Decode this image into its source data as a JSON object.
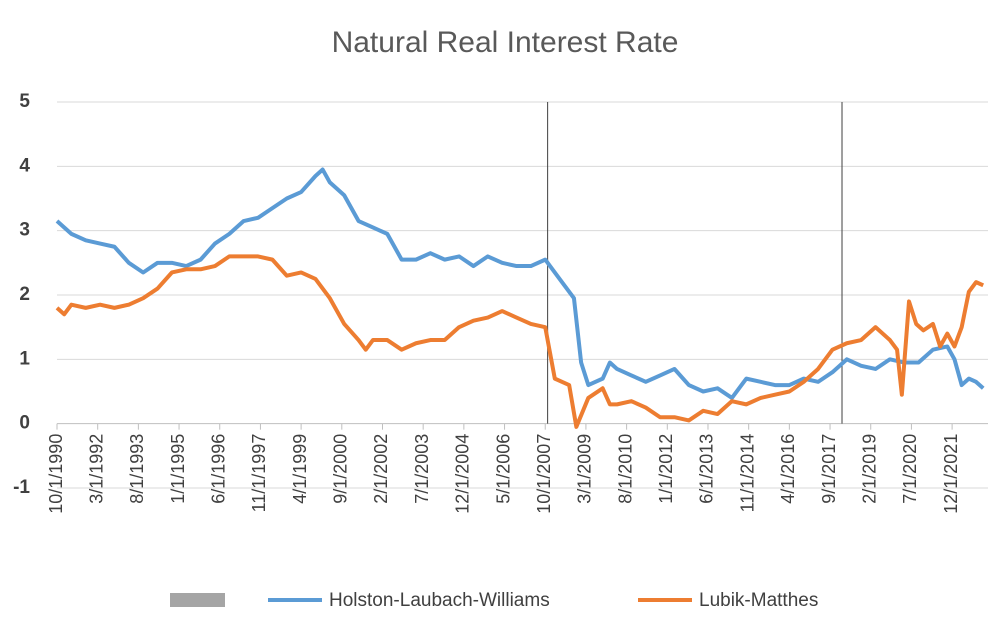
{
  "chart_data": {
    "type": "line",
    "title": "Natural Real Interest Rate",
    "xlim": [
      "1990-10",
      "2023-03"
    ],
    "xticks": [
      {
        "value": "1990-10",
        "label": "10/1/1990"
      },
      {
        "value": "1992-03",
        "label": "3/1/1992"
      },
      {
        "value": "1993-08",
        "label": "8/1/1993"
      },
      {
        "value": "1995-01",
        "label": "1/1/1995"
      },
      {
        "value": "1996-06",
        "label": "6/1/1996"
      },
      {
        "value": "1997-11",
        "label": "11/1/1997"
      },
      {
        "value": "1999-04",
        "label": "4/1/1999"
      },
      {
        "value": "2000-09",
        "label": "9/1/2000"
      },
      {
        "value": "2002-02",
        "label": "2/1/2002"
      },
      {
        "value": "2003-07",
        "label": "7/1/2003"
      },
      {
        "value": "2004-12",
        "label": "12/1/2004"
      },
      {
        "value": "2006-05",
        "label": "5/1/2006"
      },
      {
        "value": "2007-10",
        "label": "10/1/2007"
      },
      {
        "value": "2009-03",
        "label": "3/1/2009"
      },
      {
        "value": "2010-08",
        "label": "8/1/2010"
      },
      {
        "value": "2012-01",
        "label": "1/1/2012"
      },
      {
        "value": "2013-06",
        "label": "6/1/2013"
      },
      {
        "value": "2014-11",
        "label": "11/1/2014"
      },
      {
        "value": "2016-04",
        "label": "4/1/2016"
      },
      {
        "value": "2017-09",
        "label": "9/1/2017"
      },
      {
        "value": "2019-02",
        "label": "2/1/2019"
      },
      {
        "value": "2020-07",
        "label": "7/1/2020"
      },
      {
        "value": "2021-12",
        "label": "12/1/2021"
      }
    ],
    "ylim": [
      -1,
      5
    ],
    "yticks": [
      -1,
      0,
      1,
      2,
      3,
      4,
      5
    ],
    "grid": true,
    "reference_lines": [
      "2007-11",
      "2018-02"
    ],
    "series": [
      {
        "name": "Holston-Laubach-Williams",
        "color": "#5b9bd5",
        "x": [
          "1990-10",
          "1991-04",
          "1991-10",
          "1992-04",
          "1992-10",
          "1993-04",
          "1993-10",
          "1994-04",
          "1994-10",
          "1995-04",
          "1995-10",
          "1996-04",
          "1996-10",
          "1997-04",
          "1997-10",
          "1998-04",
          "1998-10",
          "1999-04",
          "1999-10",
          "2000-01",
          "2000-04",
          "2000-10",
          "2001-04",
          "2001-10",
          "2002-04",
          "2002-10",
          "2003-04",
          "2003-10",
          "2004-04",
          "2004-10",
          "2005-04",
          "2005-10",
          "2006-04",
          "2006-10",
          "2007-04",
          "2007-10",
          "2008-04",
          "2008-10",
          "2009-01",
          "2009-04",
          "2009-10",
          "2010-01",
          "2010-04",
          "2010-10",
          "2011-04",
          "2011-10",
          "2012-04",
          "2012-10",
          "2013-04",
          "2013-10",
          "2014-04",
          "2014-10",
          "2015-04",
          "2015-10",
          "2016-04",
          "2016-10",
          "2017-04",
          "2017-10",
          "2018-04",
          "2018-10",
          "2019-04",
          "2019-10",
          "2020-04",
          "2020-10",
          "2021-04",
          "2021-10",
          "2022-01",
          "2022-04",
          "2022-07",
          "2022-10",
          "2023-01"
        ],
        "values": [
          3.15,
          2.95,
          2.85,
          2.8,
          2.75,
          2.5,
          2.35,
          2.5,
          2.5,
          2.45,
          2.55,
          2.8,
          2.95,
          3.15,
          3.2,
          3.35,
          3.5,
          3.6,
          3.85,
          3.95,
          3.75,
          3.55,
          3.15,
          3.05,
          2.95,
          2.55,
          2.55,
          2.65,
          2.55,
          2.6,
          2.45,
          2.6,
          2.5,
          2.45,
          2.45,
          2.55,
          2.25,
          1.95,
          0.95,
          0.6,
          0.7,
          0.95,
          0.85,
          0.75,
          0.65,
          0.75,
          0.85,
          0.6,
          0.5,
          0.55,
          0.4,
          0.7,
          0.65,
          0.6,
          0.6,
          0.7,
          0.65,
          0.8,
          1.0,
          0.9,
          0.85,
          1.0,
          0.95,
          0.95,
          1.15,
          1.2,
          1.0,
          0.6,
          0.7,
          0.65,
          0.55
        ]
      },
      {
        "name": "Lubik-Matthes",
        "color": "#ed7d31",
        "x": [
          "1990-10",
          "1991-01",
          "1991-04",
          "1991-10",
          "1992-04",
          "1992-10",
          "1993-04",
          "1993-10",
          "1994-04",
          "1994-10",
          "1995-04",
          "1995-10",
          "1996-04",
          "1996-10",
          "1997-04",
          "1997-10",
          "1998-04",
          "1998-10",
          "1999-04",
          "1999-10",
          "2000-04",
          "2000-10",
          "2001-04",
          "2001-07",
          "2001-10",
          "2002-04",
          "2002-10",
          "2003-04",
          "2003-10",
          "2004-04",
          "2004-10",
          "2005-04",
          "2005-10",
          "2006-04",
          "2006-10",
          "2007-04",
          "2007-10",
          "2007-12",
          "2008-02",
          "2008-08",
          "2008-11",
          "2009-04",
          "2009-10",
          "2010-01",
          "2010-04",
          "2010-10",
          "2011-04",
          "2011-10",
          "2012-04",
          "2012-10",
          "2013-04",
          "2013-10",
          "2014-04",
          "2014-10",
          "2015-04",
          "2015-10",
          "2016-04",
          "2016-10",
          "2017-04",
          "2017-10",
          "2018-04",
          "2018-10",
          "2019-04",
          "2019-10",
          "2020-01",
          "2020-03",
          "2020-06",
          "2020-09",
          "2020-12",
          "2021-04",
          "2021-07",
          "2021-10",
          "2022-01",
          "2022-04",
          "2022-07",
          "2022-10",
          "2023-01"
        ],
        "values": [
          1.8,
          1.7,
          1.85,
          1.8,
          1.85,
          1.8,
          1.85,
          1.95,
          2.1,
          2.35,
          2.4,
          2.4,
          2.45,
          2.6,
          2.6,
          2.6,
          2.55,
          2.3,
          2.35,
          2.25,
          1.95,
          1.55,
          1.3,
          1.15,
          1.3,
          1.3,
          1.15,
          1.25,
          1.3,
          1.3,
          1.5,
          1.6,
          1.65,
          1.75,
          1.65,
          1.55,
          1.5,
          1.1,
          0.7,
          0.6,
          -0.05,
          0.4,
          0.55,
          0.3,
          0.3,
          0.35,
          0.25,
          0.1,
          0.1,
          0.05,
          0.2,
          0.15,
          0.35,
          0.3,
          0.4,
          0.45,
          0.5,
          0.65,
          0.85,
          1.15,
          1.25,
          1.3,
          1.5,
          1.3,
          1.15,
          0.45,
          1.9,
          1.55,
          1.45,
          1.55,
          1.2,
          1.4,
          1.2,
          1.5,
          2.05,
          2.2,
          2.15
        ]
      }
    ]
  }
}
